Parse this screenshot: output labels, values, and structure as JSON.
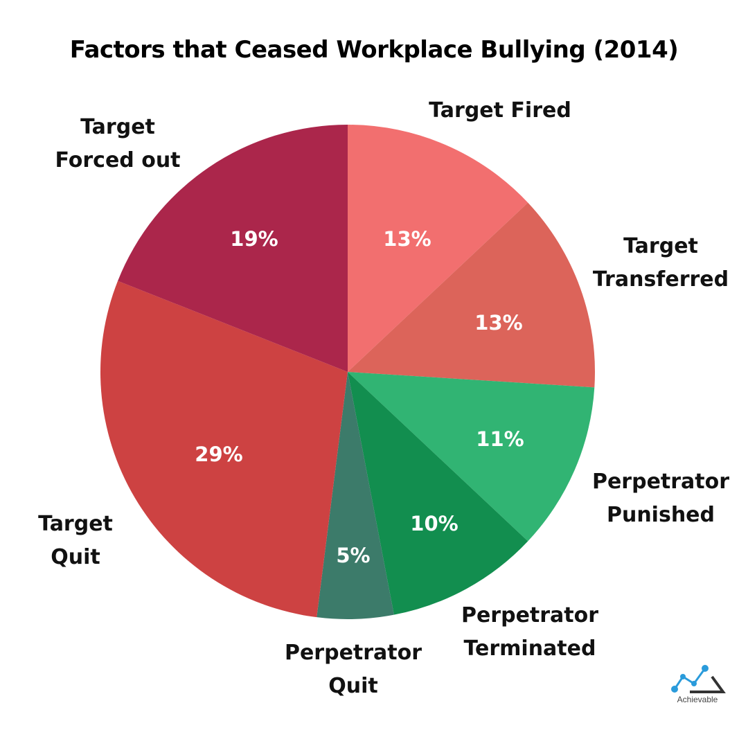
{
  "chart_data": {
    "type": "pie",
    "title": "Factors that Ceased Workplace Bullying (2014)",
    "start_angle_deg": 0,
    "direction": "clockwise",
    "slices": [
      {
        "label": "Target Fired",
        "value": 13,
        "display": "13%",
        "color": "#F26F6F",
        "label_lines": "Target Fired",
        "label_pos": [
          722,
          160
        ],
        "pct_pos": [
          588,
          345
        ]
      },
      {
        "label": "Target Transferred",
        "value": 13,
        "display": "13%",
        "color": "#DC645A",
        "label_lines": "Target\nTransferred",
        "label_pos": [
          954,
          380
        ],
        "pct_pos": [
          720,
          466
        ]
      },
      {
        "label": "Perpetrator Punished",
        "value": 11,
        "display": "11%",
        "color": "#31B473",
        "label_lines": "Perpetrator\nPunished",
        "label_pos": [
          954,
          720
        ],
        "pct_pos": [
          722,
          634
        ]
      },
      {
        "label": "Perpetrator Terminated",
        "value": 10,
        "display": "10%",
        "color": "#128E4F",
        "label_lines": "Perpetrator\nTerminated",
        "label_pos": [
          765,
          913
        ],
        "pct_pos": [
          627,
          756
        ]
      },
      {
        "label": "Perpetrator Quit",
        "value": 5,
        "display": "5%",
        "color": "#3C7B6A",
        "label_lines": "Perpetrator\nQuit",
        "label_pos": [
          510,
          967
        ],
        "pct_pos": [
          510,
          802
        ]
      },
      {
        "label": "Target Quit",
        "value": 29,
        "display": "29%",
        "color": "#CD4242",
        "label_lines": "Target\nQuit",
        "label_pos": [
          109,
          781
        ],
        "pct_pos": [
          316,
          656
        ]
      },
      {
        "label": "Target Forced out",
        "value": 19,
        "display": "19%",
        "color": "#AB264B",
        "label_lines": "Target\nForced out",
        "label_pos": [
          170,
          208
        ],
        "pct_pos": [
          367,
          345
        ]
      }
    ],
    "center": [
      502,
      537
    ],
    "radius": 357,
    "legend": "none"
  },
  "logo": {
    "text": "Achievable"
  }
}
